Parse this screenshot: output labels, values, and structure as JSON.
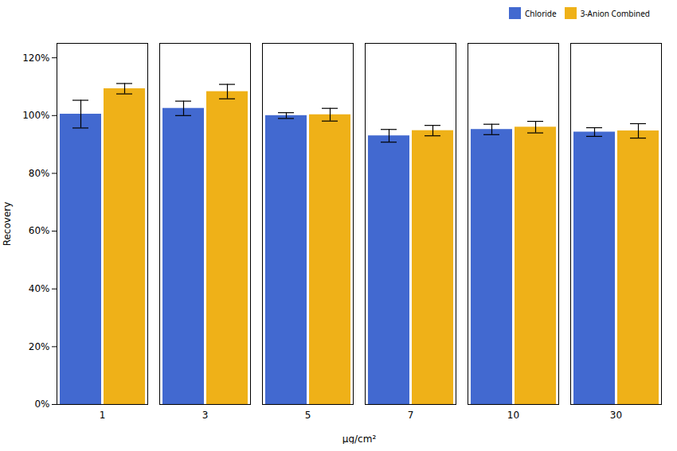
{
  "chart_data": {
    "type": "bar",
    "categories": [
      "1",
      "3",
      "5",
      "7",
      "10",
      "30"
    ],
    "xlabel": "μg/cm²",
    "ylabel": "Recovery",
    "series": [
      {
        "name": "Chloride",
        "values": [
          1.005,
          1.025,
          1.0,
          0.93,
          0.952,
          0.943
        ],
        "errors": [
          0.048,
          0.025,
          0.01,
          0.022,
          0.018,
          0.015
        ]
      },
      {
        "name": "3-Anion Combined",
        "values": [
          1.093,
          1.083,
          1.003,
          0.948,
          0.96,
          0.947
        ],
        "errors": [
          0.018,
          0.025,
          0.022,
          0.018,
          0.02,
          0.025
        ]
      }
    ],
    "ylim": [
      0,
      1.25
    ],
    "yticks": [
      {
        "value": 0.0,
        "label": "0%"
      },
      {
        "value": 0.2,
        "label": "20%"
      },
      {
        "value": 0.4,
        "label": "40%"
      },
      {
        "value": 0.6,
        "label": "60%"
      },
      {
        "value": 0.8,
        "label": "80%"
      },
      {
        "value": 1.0,
        "label": "100%"
      },
      {
        "value": 1.2,
        "label": "120%"
      }
    ],
    "legend": "upper right",
    "grid": false
  }
}
